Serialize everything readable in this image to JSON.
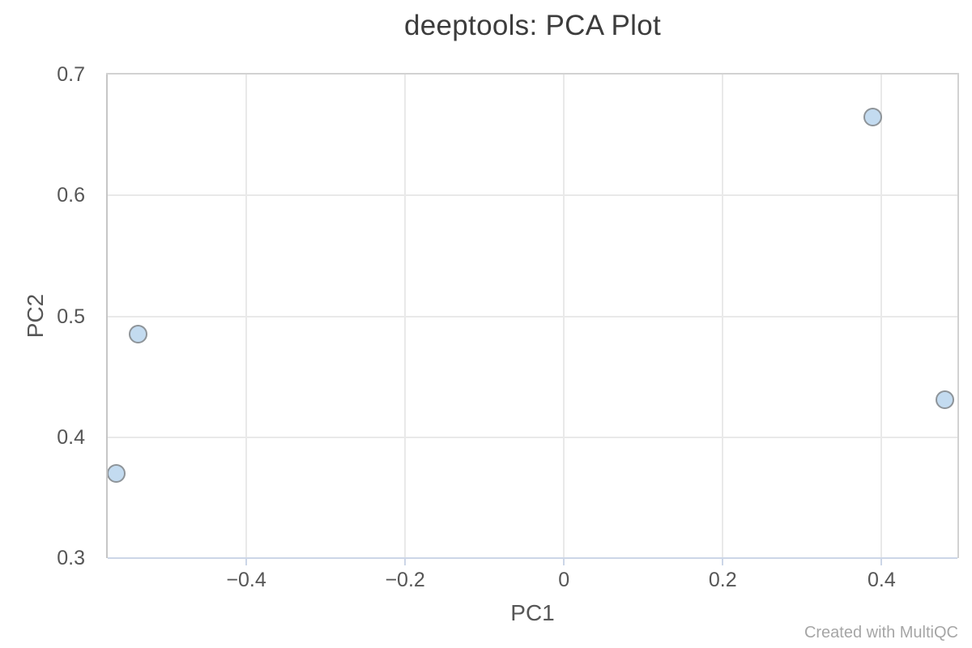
{
  "chart_data": {
    "type": "scatter",
    "title": "deeptools: PCA Plot",
    "xlabel": "PC1",
    "ylabel": "PC2",
    "xlim": [
      -0.5745,
      0.4955
    ],
    "ylim": [
      0.3,
      0.7
    ],
    "grid": true,
    "legend": "none",
    "x_ticks": [
      {
        "value": -0.4,
        "label": "−0.4"
      },
      {
        "value": -0.2,
        "label": "−0.2"
      },
      {
        "value": 0,
        "label": "0"
      },
      {
        "value": 0.2,
        "label": "0.2"
      },
      {
        "value": 0.4,
        "label": "0.4"
      }
    ],
    "y_ticks": [
      {
        "value": 0.3,
        "label": "0.3"
      },
      {
        "value": 0.4,
        "label": "0.4"
      },
      {
        "value": 0.5,
        "label": "0.5"
      },
      {
        "value": 0.6,
        "label": "0.6"
      },
      {
        "value": 0.7,
        "label": "0.7"
      }
    ],
    "points": [
      {
        "x": 0.389,
        "y": 0.665
      },
      {
        "x": 0.48,
        "y": 0.431
      },
      {
        "x": -0.536,
        "y": 0.485
      },
      {
        "x": -0.564,
        "y": 0.37
      }
    ]
  },
  "colors": {
    "title_text": "#3c3c3c",
    "tick_text": "#565656",
    "gridline": "#e9e9e9",
    "plot_border": "#d2d2d2",
    "y_axis_line": "#c6c6c6",
    "x_axis_line": "#ccd6e7",
    "marker_fill": "#c3dbf0",
    "marker_stroke": "#8e9499",
    "watermark_text": "#a6a6a6"
  },
  "watermark": "Created with MultiQC"
}
